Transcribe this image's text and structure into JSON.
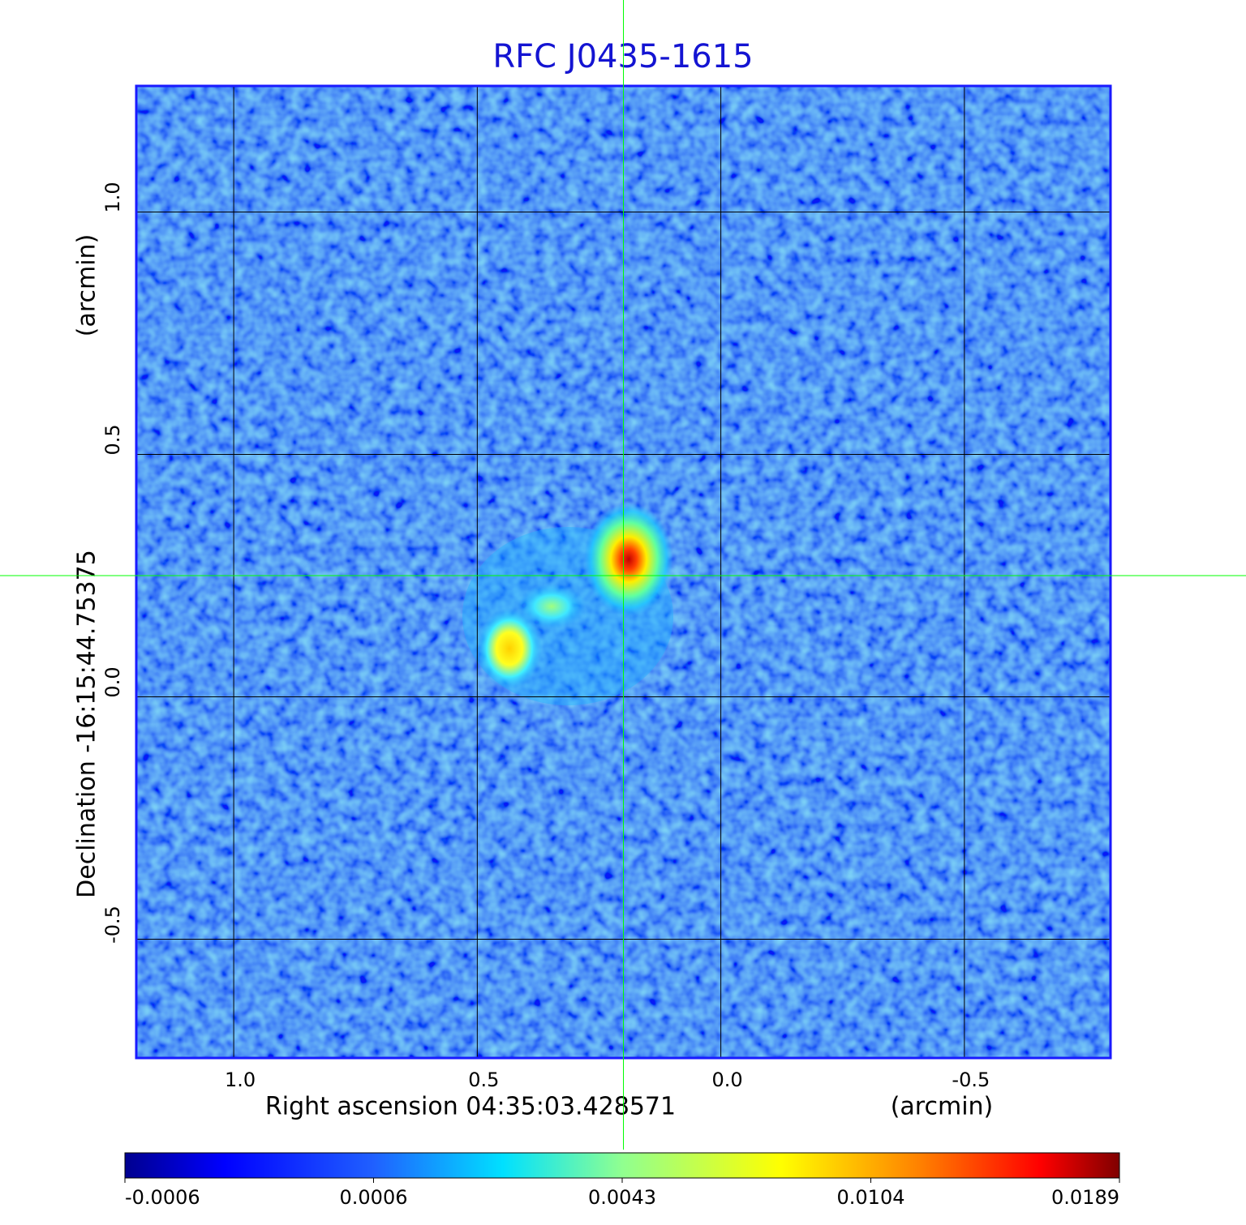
{
  "chart_data": {
    "type": "image",
    "title": "RFC J0435-1615",
    "xlabel": "Right ascension  04:35:03.428571",
    "xunit": "(arcmin)",
    "ylabel": "Declination  -16:15:44.75375",
    "yunit": "(arcmin)",
    "xlim": [
      1.2,
      -0.8
    ],
    "ylim": [
      -0.745,
      1.26
    ],
    "xticks": [
      {
        "value": 1,
        "label": "1.0"
      },
      0.5,
      {
        "value": 0,
        "label": "0.0"
      },
      -0.5
    ],
    "yticks": [
      {
        "value": 1,
        "label": "1.0"
      },
      0.5,
      {
        "value": 0,
        "label": "0.0"
      },
      -0.5
    ],
    "grid": true,
    "marker": {
      "x": 0.2,
      "y": 0.25,
      "color": "#00ff00"
    },
    "colorbar": {
      "ticks": [
        -0.0006,
        0.0006,
        0.0043,
        0.0104,
        0.0189
      ]
    }
  }
}
